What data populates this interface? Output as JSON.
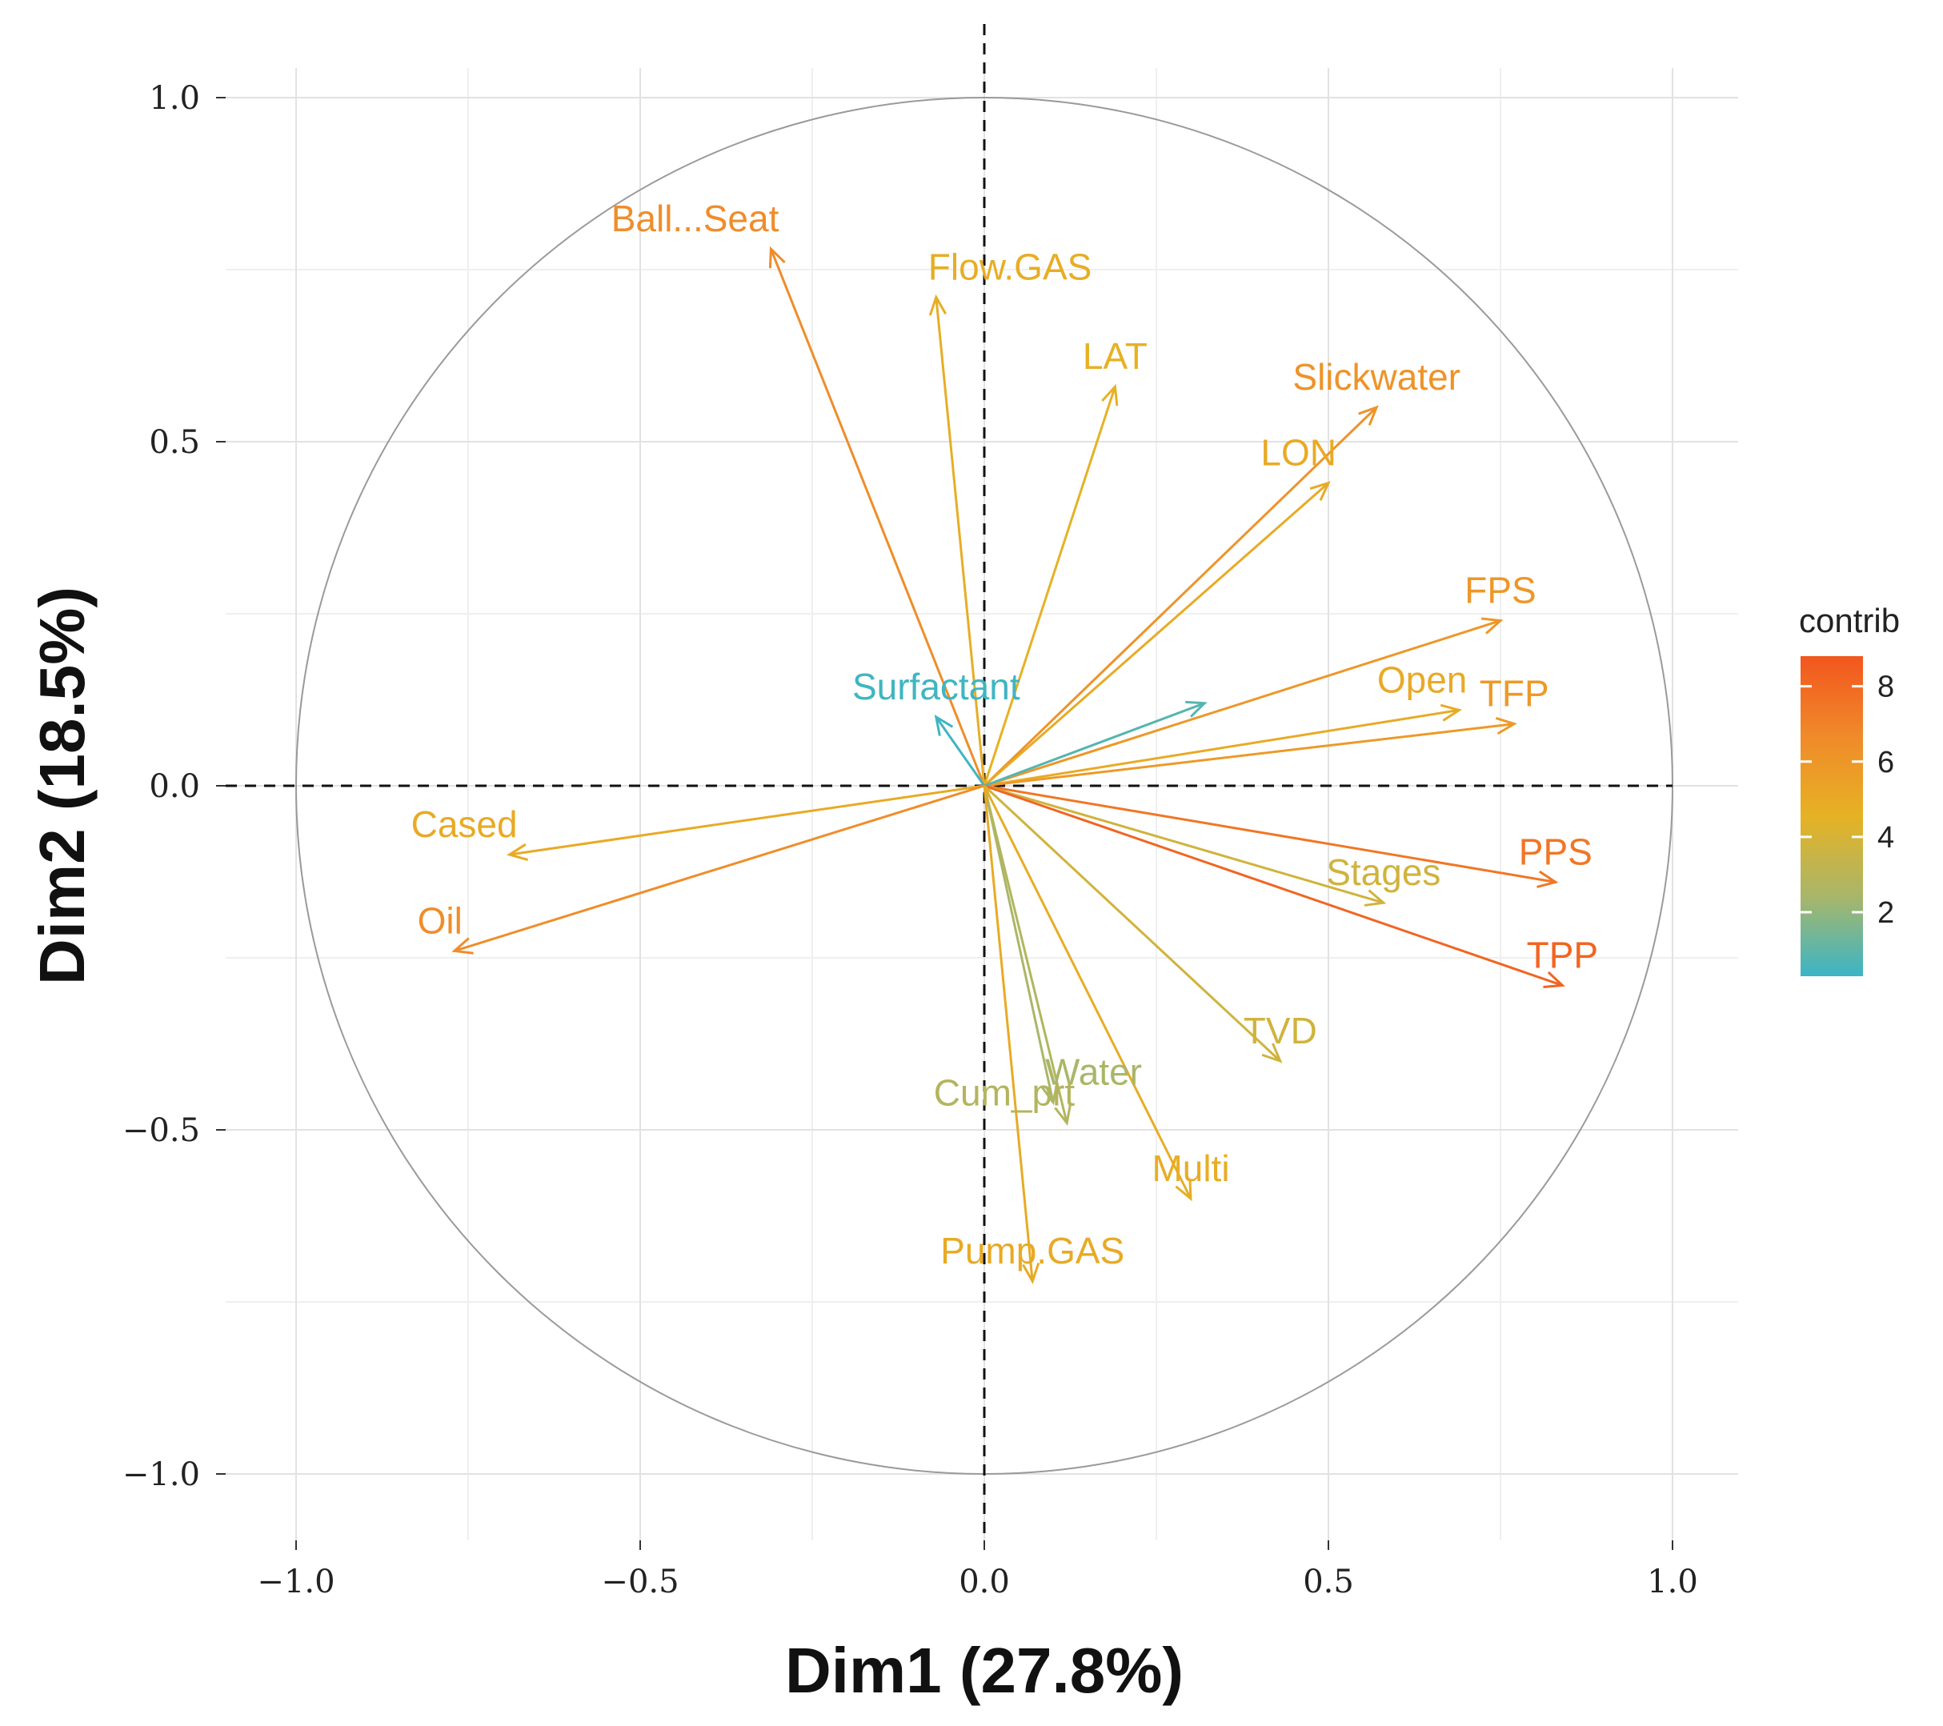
{
  "chart_data": {
    "type": "pca-correlation-circle",
    "xlabel": "Dim1 (27.8%)",
    "ylabel": "Dim2 (18.5%)",
    "xlim": [
      -1.1,
      1.1
    ],
    "ylim": [
      -1.1,
      1.1
    ],
    "x_ticks": [
      {
        "value": -1.0,
        "label": "−1.0"
      },
      {
        "value": -0.5,
        "label": "−0.5"
      },
      {
        "value": 0.0,
        "label": "0.0"
      },
      {
        "value": 0.5,
        "label": "0.5"
      },
      {
        "value": 1.0,
        "label": "1.0"
      }
    ],
    "y_ticks": [
      {
        "value": 1.0,
        "label": "1.0"
      },
      {
        "value": 0.5,
        "label": "0.5"
      },
      {
        "value": 0.0,
        "label": "0.0"
      },
      {
        "value": -0.5,
        "label": "−0.5"
      },
      {
        "value": -1.0,
        "label": "−1.0"
      }
    ],
    "grid": true,
    "legend": {
      "title": "contrib",
      "placement": "right",
      "ticks": [
        "8",
        "6",
        "4",
        "2"
      ],
      "tick_values": [
        8,
        6,
        4,
        2
      ],
      "range": [
        0.3,
        8.8
      ],
      "colors": [
        "#f2561e",
        "#f08a2a",
        "#e6b224",
        "#a8b66a",
        "#3bb5c6"
      ]
    },
    "variables": [
      {
        "name": "Ball...Seat",
        "x": -0.31,
        "y": 0.78,
        "contrib": 6.5
      },
      {
        "name": "Flow.GAS",
        "x": -0.07,
        "y": 0.71,
        "contrib": 4.8
      },
      {
        "name": "LAT",
        "x": 0.19,
        "y": 0.58,
        "contrib": 4.6
      },
      {
        "name": "Slickwater",
        "x": 0.57,
        "y": 0.55,
        "contrib": 6.2
      },
      {
        "name": "LON",
        "x": 0.5,
        "y": 0.44,
        "contrib": 5.0
      },
      {
        "name": "FPS",
        "x": 0.75,
        "y": 0.24,
        "contrib": 6.0
      },
      {
        "name": "Open",
        "x": 0.69,
        "y": 0.11,
        "contrib": 5.0
      },
      {
        "name": "TFP",
        "x": 0.77,
        "y": 0.09,
        "contrib": 5.8
      },
      {
        "name": "Surfactant",
        "x": -0.07,
        "y": 0.1,
        "contrib": 0.4
      },
      {
        "name": "",
        "x": 0.32,
        "y": 0.12,
        "contrib": 0.8
      },
      {
        "name": "Cased",
        "x": -0.69,
        "y": -0.1,
        "contrib": 5.0
      },
      {
        "name": "Oil",
        "x": -0.77,
        "y": -0.24,
        "contrib": 6.5
      },
      {
        "name": "PPS",
        "x": 0.83,
        "y": -0.14,
        "contrib": 7.5
      },
      {
        "name": "Stages",
        "x": 0.58,
        "y": -0.17,
        "contrib": 3.8
      },
      {
        "name": "TPP",
        "x": 0.84,
        "y": -0.29,
        "contrib": 8.2
      },
      {
        "name": "TVD",
        "x": 0.43,
        "y": -0.4,
        "contrib": 3.8
      },
      {
        "name": "Water",
        "x": 0.1,
        "y": -0.46,
        "contrib": 2.5
      },
      {
        "name": "Cum_prt",
        "x": 0.12,
        "y": -0.49,
        "contrib": 2.8
      },
      {
        "name": "Multi",
        "x": 0.3,
        "y": -0.6,
        "contrib": 4.8
      },
      {
        "name": "Pump.GAS",
        "x": 0.07,
        "y": -0.72,
        "contrib": 5.0
      }
    ]
  },
  "label_positions": {
    "Ball...Seat": "above-left",
    "Flow.GAS": "above-right",
    "LAT": "above",
    "Slickwater": "above",
    "LON": "above-left",
    "FPS": "above",
    "Open": "above-left",
    "TFP": "above",
    "Surfactant": "above",
    "Cased": "above-left",
    "Oil": "above-left",
    "PPS": "above",
    "Stages": "above",
    "TPP": "above",
    "TVD": "above",
    "Water": "above-right",
    "Cum_prt": "above-left",
    "Multi": "above",
    "Pump.GAS": "above"
  }
}
